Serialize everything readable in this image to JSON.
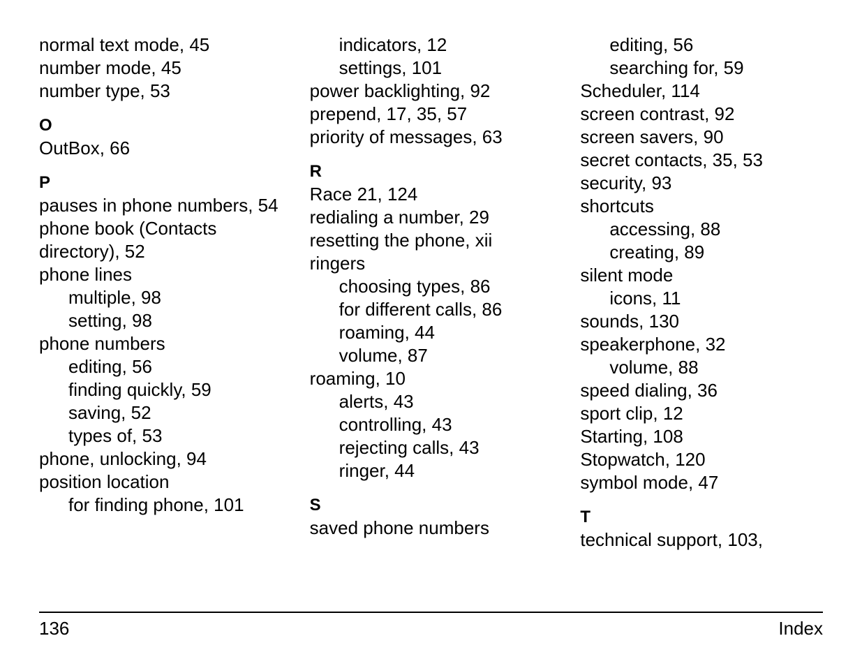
{
  "footer": {
    "page_number": "136",
    "label": "Index"
  },
  "columns": [
    {
      "items": [
        {
          "type": "entry",
          "text": "normal text mode, 45"
        },
        {
          "type": "entry",
          "text": "number mode, 45"
        },
        {
          "type": "entry",
          "text": "number type, 53"
        },
        {
          "type": "letter",
          "text": "O"
        },
        {
          "type": "entry",
          "text": "OutBox, 66"
        },
        {
          "type": "letter",
          "text": "P"
        },
        {
          "type": "entry",
          "text": "pauses in phone numbers, 54"
        },
        {
          "type": "entry",
          "text": "phone book (Contacts directory), 52"
        },
        {
          "type": "entry",
          "text": "phone lines"
        },
        {
          "type": "sub",
          "text": "multiple, 98"
        },
        {
          "type": "sub",
          "text": "setting, 98"
        },
        {
          "type": "entry",
          "text": "phone numbers"
        },
        {
          "type": "sub",
          "text": "editing, 56"
        },
        {
          "type": "sub",
          "text": "finding quickly, 59"
        },
        {
          "type": "sub",
          "text": "saving, 52"
        },
        {
          "type": "sub",
          "text": "types of, 53"
        },
        {
          "type": "entry",
          "text": "phone, unlocking, 94"
        },
        {
          "type": "entry",
          "text": "position location"
        },
        {
          "type": "sub",
          "text": "for finding phone, 101"
        }
      ]
    },
    {
      "items": [
        {
          "type": "sub",
          "text": "indicators, 12"
        },
        {
          "type": "sub",
          "text": "settings, 101"
        },
        {
          "type": "entry",
          "text": "power backlighting, 92"
        },
        {
          "type": "entry",
          "text": "prepend, 17, 35, 57"
        },
        {
          "type": "entry",
          "text": "priority of messages, 63"
        },
        {
          "type": "letter",
          "text": "R"
        },
        {
          "type": "entry",
          "text": "Race 21, 124"
        },
        {
          "type": "entry",
          "text": "redialing a number, 29"
        },
        {
          "type": "entry",
          "text": "resetting the phone, xii"
        },
        {
          "type": "entry",
          "text": "ringers"
        },
        {
          "type": "sub",
          "text": "choosing types, 86"
        },
        {
          "type": "sub",
          "text": "for different calls, 86"
        },
        {
          "type": "sub",
          "text": "roaming, 44"
        },
        {
          "type": "sub",
          "text": "volume, 87"
        },
        {
          "type": "entry",
          "text": "roaming, 10"
        },
        {
          "type": "sub",
          "text": "alerts, 43"
        },
        {
          "type": "sub",
          "text": "controlling, 43"
        },
        {
          "type": "sub",
          "text": "rejecting calls, 43"
        },
        {
          "type": "sub",
          "text": "ringer, 44"
        },
        {
          "type": "letter",
          "text": "S"
        },
        {
          "type": "entry",
          "text": "saved phone numbers"
        }
      ]
    },
    {
      "items": [
        {
          "type": "sub",
          "text": "editing, 56"
        },
        {
          "type": "sub",
          "text": "searching for, 59"
        },
        {
          "type": "entry",
          "text": "Scheduler, 114"
        },
        {
          "type": "entry",
          "text": "screen contrast, 92"
        },
        {
          "type": "entry",
          "text": "screen savers, 90"
        },
        {
          "type": "entry",
          "text": "secret contacts, 35, 53"
        },
        {
          "type": "entry",
          "text": "security, 93"
        },
        {
          "type": "entry",
          "text": "shortcuts"
        },
        {
          "type": "sub",
          "text": "accessing, 88"
        },
        {
          "type": "sub",
          "text": "creating, 89"
        },
        {
          "type": "entry",
          "text": "silent mode"
        },
        {
          "type": "sub",
          "text": "icons, 11"
        },
        {
          "type": "entry",
          "text": "sounds, 130"
        },
        {
          "type": "entry",
          "text": "speakerphone, 32"
        },
        {
          "type": "sub",
          "text": "volume, 88"
        },
        {
          "type": "entry",
          "text": "speed dialing, 36"
        },
        {
          "type": "entry",
          "text": "sport clip, 12"
        },
        {
          "type": "entry",
          "text": "Starting, 108"
        },
        {
          "type": "entry",
          "text": "Stopwatch, 120"
        },
        {
          "type": "entry",
          "text": "symbol mode, 47"
        },
        {
          "type": "letter",
          "text": "T"
        },
        {
          "type": "entry",
          "text": "technical support, 103,"
        }
      ]
    }
  ]
}
